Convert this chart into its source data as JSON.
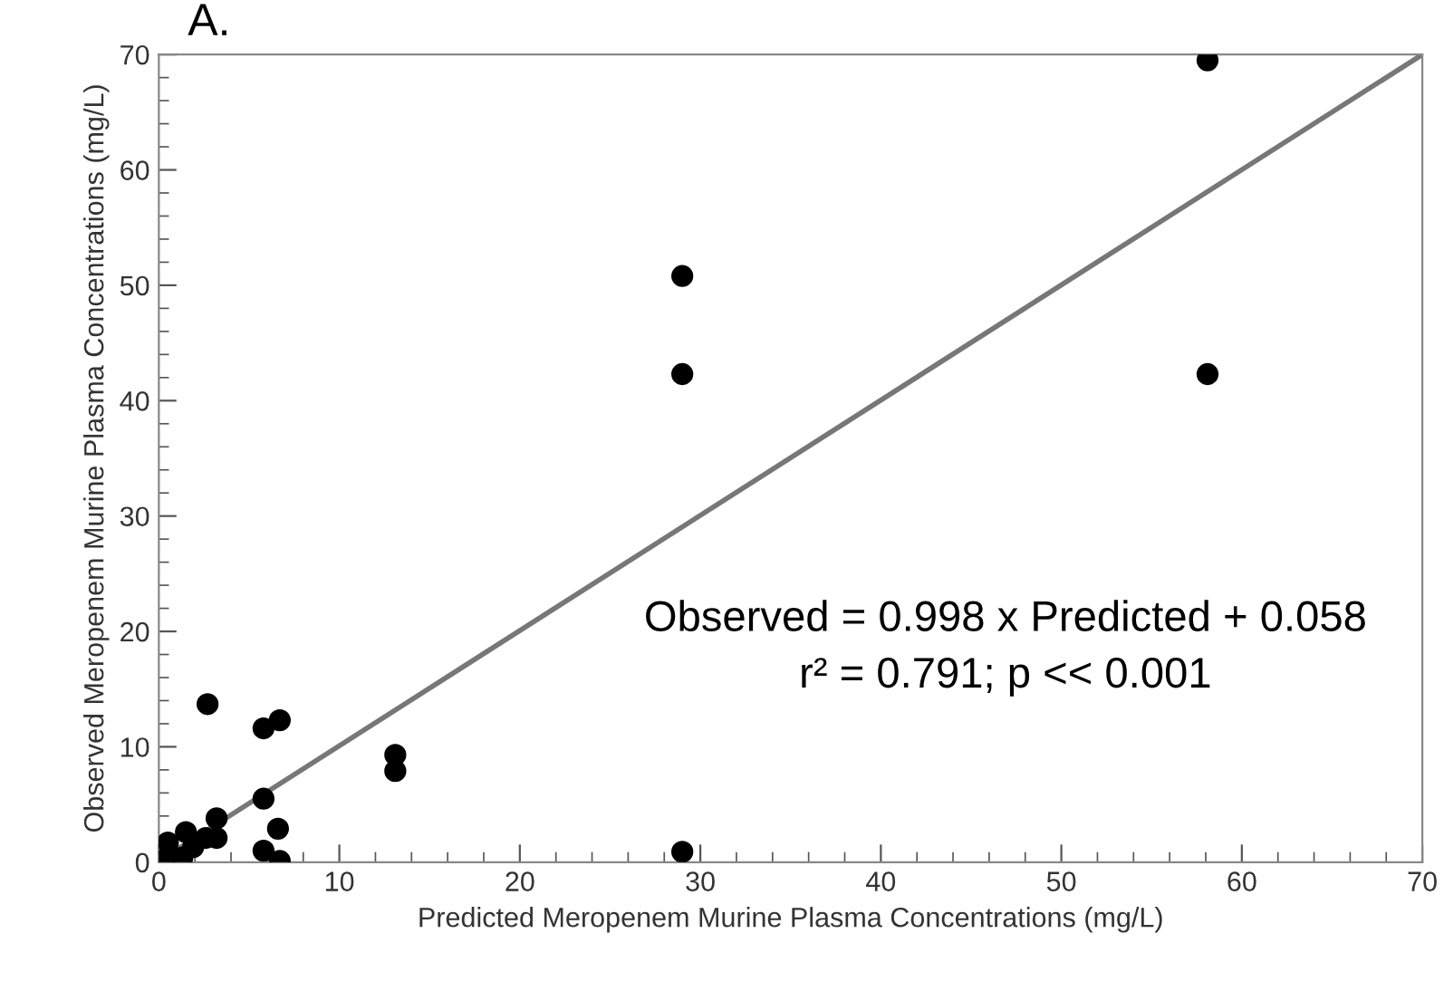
{
  "chart_data": {
    "type": "scatter",
    "title": "A.",
    "xlabel": "Predicted Meropenem Murine Plasma Concentrations (mg/L)",
    "ylabel": "Observed Meropenem Murine Plasma Concentrations (mg/L)",
    "xlim": [
      0,
      70
    ],
    "ylim": [
      0,
      70
    ],
    "xticks": [
      0,
      10,
      20,
      30,
      40,
      50,
      60,
      70
    ],
    "yticks": [
      0,
      10,
      20,
      30,
      40,
      50,
      60,
      70
    ],
    "grid": false,
    "legend": false,
    "marker": "circle",
    "series": [
      {
        "color": "#000000",
        "x": [
          0.3,
          1.3,
          0.5,
          1.5,
          1.9,
          2.6,
          3.2,
          3.2,
          2.7,
          5.8,
          6.7,
          5.8,
          6.6,
          5.8,
          6.7,
          13.1,
          13.1,
          29.0,
          29.0,
          29.0,
          58.1,
          58.1
        ],
        "values": [
          0.2,
          0.4,
          1.7,
          2.6,
          1.3,
          2.1,
          2.1,
          3.8,
          13.7,
          11.6,
          12.3,
          5.5,
          2.9,
          1.0,
          0.1,
          9.3,
          7.9,
          50.8,
          42.3,
          0.9,
          69.5,
          42.3
        ]
      },
      {
        "type": "line",
        "color": "#777777",
        "x": [
          0,
          70
        ],
        "values": [
          0.1,
          70
        ],
        "marker": "none",
        "line_style": "solid"
      }
    ],
    "annotations": [
      "Observed = 0.998 x Predicted + 0.058",
      "r² = 0.791; p << 0.001"
    ]
  }
}
